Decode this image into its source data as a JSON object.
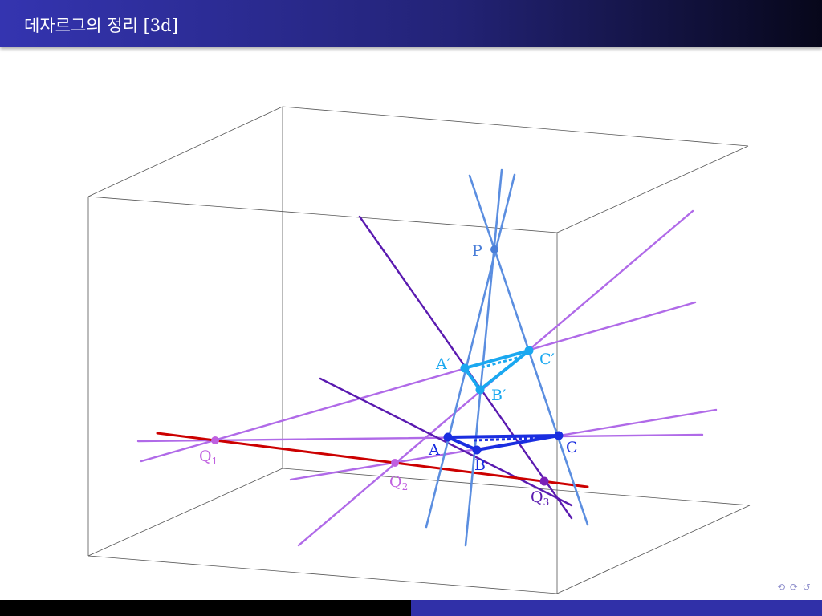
{
  "slide": {
    "title": "데자르그의 정리 [3d]"
  },
  "labels": {
    "P": "P",
    "A": "A",
    "B": "B",
    "C": "C",
    "A_prime": "A′",
    "B_prime": "B′",
    "C_prime": "C′",
    "Q1": "Q",
    "Q1_sub": "1",
    "Q2": "Q",
    "Q2_sub": "2",
    "Q3": "Q",
    "Q3_sub": "3"
  },
  "colors": {
    "header_start": "#3434b0",
    "header_end": "#07071a",
    "box_edges": "#555555",
    "rays_from_P": "#5b8ee0",
    "triangle_ABC": "#1a2ee0",
    "triangle_ApBpCp": "#1aa8f0",
    "side_lines": "#b06ae8",
    "dark_side_lines": "#5a1ab0",
    "desargues_axis": "#cc0000",
    "Q_points": "#c060e0",
    "footer_left": "#000000",
    "footer_right": "#3030a8"
  },
  "navigation": {
    "symbols": "⟲ ⟳ ↺"
  }
}
